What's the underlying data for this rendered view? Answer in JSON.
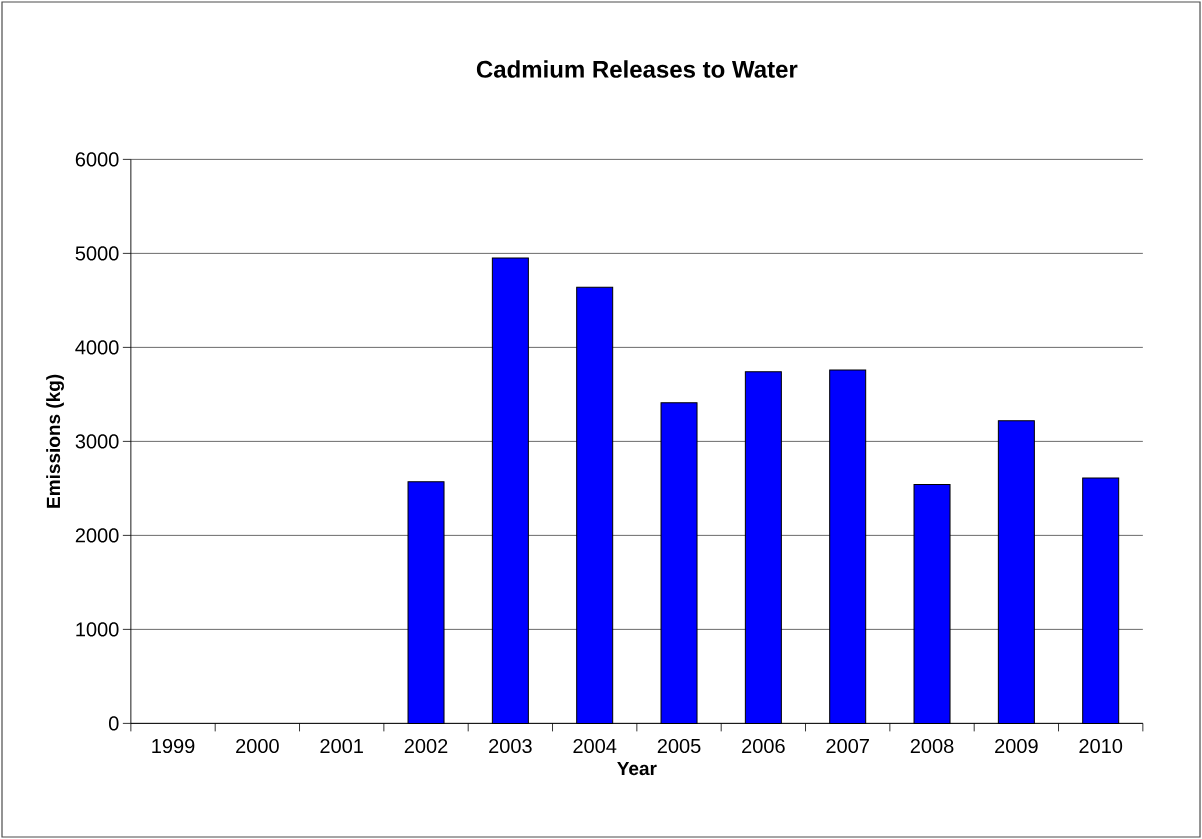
{
  "chart_data": {
    "type": "bar",
    "title": "Cadmium Releases to Water",
    "xlabel": "Year",
    "ylabel": "Emissions (kg)",
    "categories": [
      "1999",
      "2000",
      "2001",
      "2002",
      "2003",
      "2004",
      "2005",
      "2006",
      "2007",
      "2008",
      "2009",
      "2010"
    ],
    "values": [
      null,
      null,
      null,
      2570,
      4950,
      4640,
      3410,
      3740,
      3760,
      2540,
      3220,
      2610
    ],
    "color": "#0000ff",
    "ylim": [
      0,
      6000
    ],
    "yticks": [
      0,
      1000,
      2000,
      3000,
      4000,
      5000,
      6000
    ],
    "grid": "y"
  }
}
